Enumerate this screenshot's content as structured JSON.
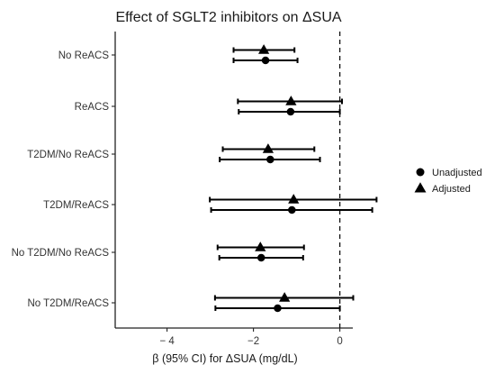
{
  "chart_data": {
    "type": "scatter",
    "subtype": "forest-plot",
    "title": "Effect of SGLT2 inhibitors on ΔSUA",
    "xlabel": "β (95% CI) for ΔSUA (mg/dL)",
    "ylabel": "",
    "xlim": [
      -5.2,
      0.3
    ],
    "xticks": [
      -4,
      -2,
      0
    ],
    "xtick_labels": [
      "− 4",
      "−2",
      "0"
    ],
    "reference_line": {
      "x": 0,
      "style": "dashed"
    },
    "categories": [
      "No ReACS",
      "ReACS",
      "T2DM/No ReACS",
      "T2DM/ReACS",
      "No T2DM/No ReACS",
      "No T2DM/ReACS"
    ],
    "legend": {
      "position": "right"
    },
    "series": [
      {
        "name": "Adjusted",
        "marker": "triangle",
        "estimate": [
          -1.76,
          -1.13,
          -1.66,
          -1.07,
          -1.84,
          -1.28
        ],
        "lower": [
          -2.46,
          -2.36,
          -2.71,
          -3.01,
          -2.83,
          -2.89
        ],
        "upper": [
          -1.05,
          0.05,
          -0.59,
          0.85,
          -0.83,
          0.31
        ]
      },
      {
        "name": "Unadjusted",
        "marker": "circle",
        "estimate": [
          -1.72,
          -1.14,
          -1.61,
          -1.11,
          -1.82,
          -1.44
        ],
        "lower": [
          -2.46,
          -2.34,
          -2.78,
          -2.98,
          -2.79,
          -2.88
        ],
        "upper": [
          -0.98,
          0.0,
          -0.46,
          0.75,
          -0.85,
          0.0
        ]
      }
    ]
  }
}
